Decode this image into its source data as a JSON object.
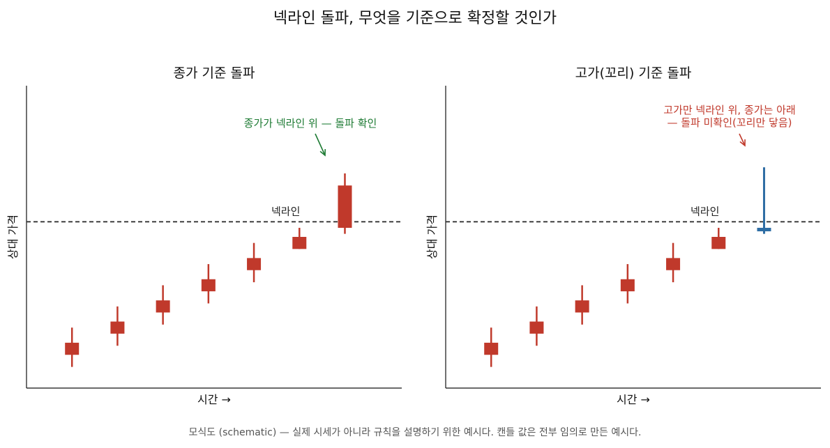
{
  "suptitle": "넥라인 돌파, 무엇을 기준으로 확정할 것인가",
  "footnote": "모식도 (schematic) — 실제 시세가 아니라 규칙을 설명하기 위한 예시다. 캔들 값은 전부 임의로 만든 예시다.",
  "colors": {
    "candle": "#c0392b",
    "highlight": "#2e6da4",
    "annot_left": "#1e7b34",
    "annot_right": "#c0392b",
    "resistance": "#333333"
  },
  "chart_data": [
    {
      "type": "candlestick",
      "title": "종가 기준 돌파",
      "xlabel": "시간 →",
      "ylabel": "상대 가격",
      "ylim": [
        0,
        100
      ],
      "resistance": {
        "value": 55,
        "label": "넥라인"
      },
      "candles": [
        {
          "open": 15,
          "close": 11,
          "high": 20,
          "low": 7
        },
        {
          "open": 22,
          "close": 18,
          "high": 27,
          "low": 14
        },
        {
          "open": 29,
          "close": 25,
          "high": 34,
          "low": 21
        },
        {
          "open": 36,
          "close": 32,
          "high": 41,
          "low": 28
        },
        {
          "open": 43,
          "close": 39,
          "high": 48,
          "low": 35
        },
        {
          "open": 50,
          "close": 46,
          "high": 53,
          "low": 46
        },
        {
          "open": 53,
          "close": 67,
          "high": 71,
          "low": 51
        }
      ],
      "highlight_index": -1,
      "annotation": {
        "lines": [
          "종가가 넥라인 위 — 돌파 확인"
        ],
        "color": "#1e7b34"
      }
    },
    {
      "type": "candlestick",
      "title": "고가(꼬리) 기준 돌파",
      "xlabel": "시간 →",
      "ylabel": "상대 가격",
      "ylim": [
        0,
        100
      ],
      "resistance": {
        "value": 55,
        "label": "넥라인"
      },
      "candles": [
        {
          "open": 15,
          "close": 11,
          "high": 20,
          "low": 7
        },
        {
          "open": 22,
          "close": 18,
          "high": 27,
          "low": 14
        },
        {
          "open": 29,
          "close": 25,
          "high": 34,
          "low": 21
        },
        {
          "open": 36,
          "close": 32,
          "high": 41,
          "low": 28
        },
        {
          "open": 43,
          "close": 39,
          "high": 48,
          "low": 35
        },
        {
          "open": 50,
          "close": 46,
          "high": 53,
          "low": 46
        },
        {
          "open": 53,
          "close": 52,
          "high": 73,
          "low": 51
        }
      ],
      "highlight_index": 6,
      "annotation": {
        "lines": [
          "고가만 넥라인 위, 종가는 아래",
          "— 돌파 미확인(꼬리만 닿음)"
        ],
        "color": "#c0392b"
      }
    }
  ]
}
